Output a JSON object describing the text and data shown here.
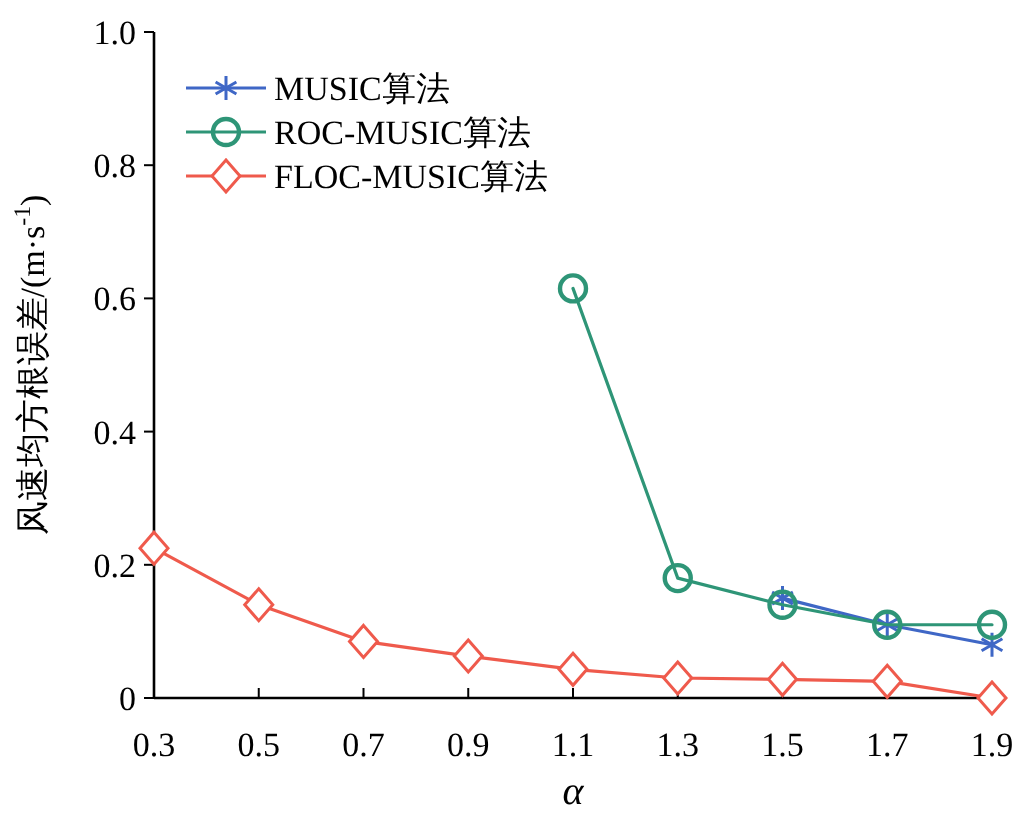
{
  "chart_data": {
    "type": "line",
    "xlabel": "α",
    "ylabel": "风速均方根误差/(m·s$^{-1}$)",
    "x": [
      0.3,
      0.5,
      0.7,
      0.9,
      1.1,
      1.3,
      1.5,
      1.7,
      1.9
    ],
    "series": [
      {
        "name": "MUSIC算法",
        "color": "#3f67c6",
        "marker": "cross",
        "values": [
          null,
          null,
          null,
          null,
          null,
          null,
          0.15,
          0.11,
          0.08
        ]
      },
      {
        "name": "ROC-MUSIC算法",
        "color": "#2e9577",
        "marker": "circle",
        "values": [
          null,
          null,
          null,
          null,
          0.615,
          0.18,
          0.14,
          0.11,
          0.11
        ]
      },
      {
        "name": "FLOC-MUSIC算法",
        "color": "#ef5a4c",
        "marker": "diamond",
        "values": [
          0.225,
          0.14,
          0.085,
          0.063,
          0.043,
          0.03,
          0.028,
          0.025,
          0
        ]
      }
    ],
    "xlim": [
      0.3,
      1.9
    ],
    "xticks": [
      0.3,
      0.5,
      0.7,
      0.9,
      1.1,
      1.3,
      1.5,
      1.7,
      1.9
    ],
    "ylim": [
      0,
      1
    ],
    "yticks": [
      0,
      0.2,
      0.4,
      0.6,
      0.8,
      {
        "value": 1,
        "label": "1.0"
      }
    ],
    "grid": false,
    "legend": "top left",
    "line_style": "solid"
  }
}
